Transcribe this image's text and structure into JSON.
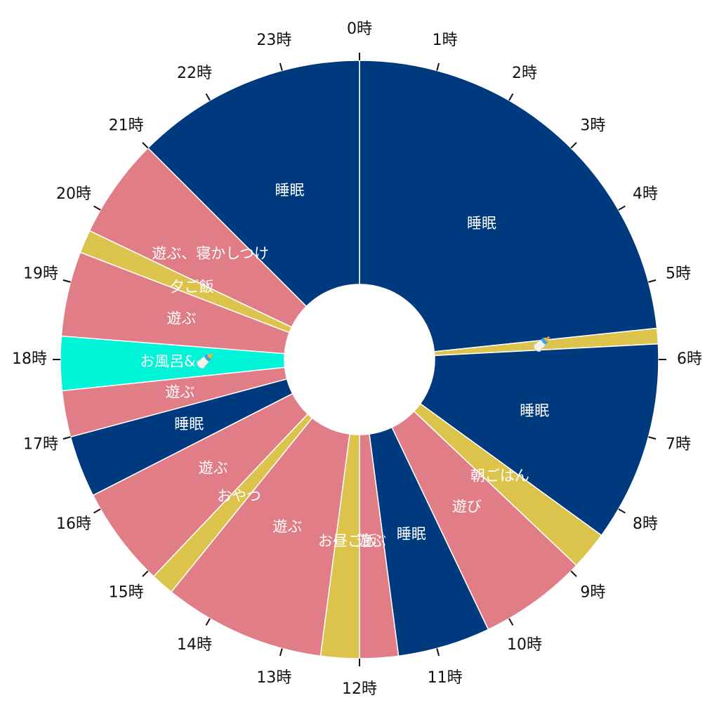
{
  "chart_data": {
    "type": "pie",
    "title": "",
    "hour_labels": [
      "0時",
      "1時",
      "2時",
      "3時",
      "4時",
      "5時",
      "6時",
      "7時",
      "8時",
      "9時",
      "10時",
      "11時",
      "12時",
      "13時",
      "14時",
      "15時",
      "16時",
      "17時",
      "18時",
      "19時",
      "20時",
      "21時",
      "22時",
      "23時"
    ],
    "colors": {
      "sleep": "#003A7E",
      "meal": "#DCC34C",
      "play": "#E07D86",
      "bath": "#00F5D8",
      "center": "#FFFFFF"
    },
    "segments": [
      {
        "label": "睡眠",
        "start": 0.0,
        "end": 5.6,
        "category": "sleep"
      },
      {
        "label": "🍼",
        "start": 5.6,
        "end": 5.8,
        "category": "meal"
      },
      {
        "label": "睡眠",
        "start": 5.8,
        "end": 8.4,
        "category": "sleep"
      },
      {
        "label": "朝ごはん",
        "start": 8.4,
        "end": 8.9,
        "category": "meal"
      },
      {
        "label": "遊び",
        "start": 8.9,
        "end": 10.3,
        "category": "play"
      },
      {
        "label": "睡眠",
        "start": 10.3,
        "end": 11.5,
        "category": "sleep"
      },
      {
        "label": "遊ぶ",
        "start": 11.5,
        "end": 12.0,
        "category": "play"
      },
      {
        "label": "お昼ご飯",
        "start": 12.0,
        "end": 12.5,
        "category": "meal"
      },
      {
        "label": "遊ぶ",
        "start": 12.5,
        "end": 14.6,
        "category": "play"
      },
      {
        "label": "おやつ",
        "start": 14.6,
        "end": 14.9,
        "category": "meal"
      },
      {
        "label": "遊ぶ",
        "start": 14.9,
        "end": 16.2,
        "category": "play"
      },
      {
        "label": "睡眠",
        "start": 16.2,
        "end": 17.0,
        "category": "sleep"
      },
      {
        "label": "遊ぶ",
        "start": 17.0,
        "end": 17.6,
        "category": "play"
      },
      {
        "label": "お風呂&🍼",
        "start": 17.6,
        "end": 18.3,
        "category": "bath"
      },
      {
        "label": "遊ぶ",
        "start": 18.3,
        "end": 19.4,
        "category": "play"
      },
      {
        "label": "夕ご飯",
        "start": 19.4,
        "end": 19.7,
        "category": "meal"
      },
      {
        "label": "遊ぶ、寝かしつけ",
        "start": 19.7,
        "end": 21.0,
        "category": "play"
      },
      {
        "label": "睡眠",
        "start": 21.0,
        "end": 24.0,
        "category": "sleep"
      }
    ]
  }
}
